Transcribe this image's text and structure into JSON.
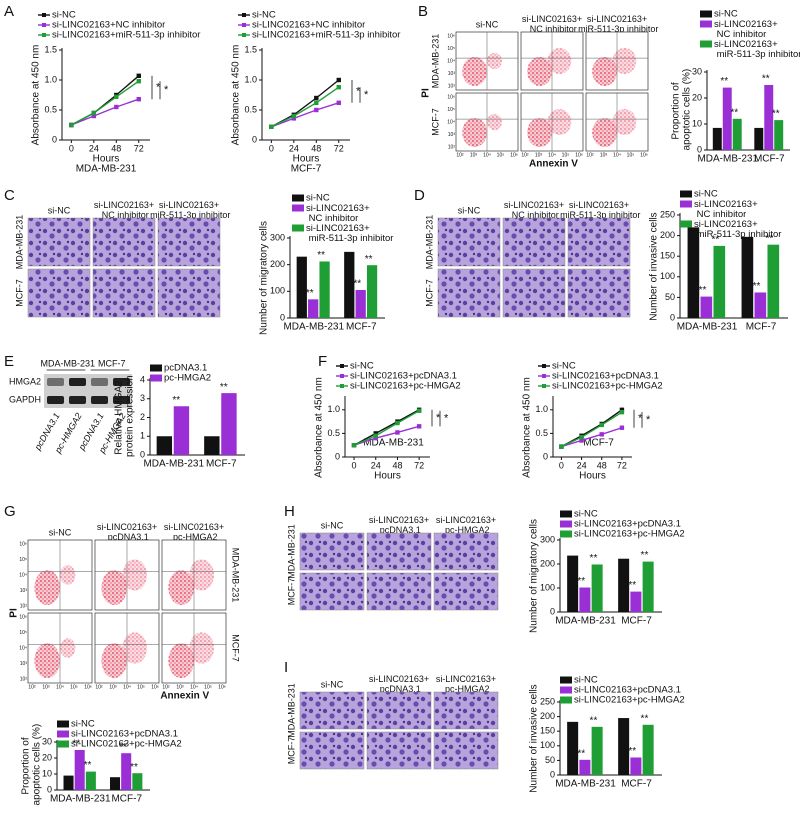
{
  "panel_labels": [
    "A",
    "B",
    "C",
    "D",
    "E",
    "F",
    "G",
    "H",
    "I"
  ],
  "flow_b": {
    "columns": [
      "si-NC",
      "si-LINC02163+ NC inhibitor",
      "si-LINC02163+ miR-511-3p inhibitor"
    ],
    "rows": [
      "MDA-MB-231",
      "MCF-7"
    ],
    "y_label": "PI",
    "x_label": "Annexin V",
    "tick_labels": [
      "10⁶",
      "10⁵",
      "10⁴",
      "10³",
      "10²"
    ]
  },
  "micro_c": {
    "columns": [
      "si-NC",
      "si-LINC02163+ NC inhibitor",
      "si-LINC02163+ miR-511-3p inhibitor"
    ],
    "rows": [
      "MDA-MB-231",
      "MCF-7"
    ]
  },
  "micro_d": {
    "columns": [
      "si-NC",
      "si-LINC02163+ NC inhibitor",
      "si-LINC02163+ miR-511-3p inhibitor"
    ],
    "rows": [
      "MDA-MB-231",
      "MCF-7"
    ]
  },
  "blot_e": {
    "cell_lines": [
      "MDA-MB-231",
      "MCF-7"
    ],
    "proteins": [
      "HMGA2",
      "GAPDH"
    ],
    "lanes": [
      "pcDNA3.1",
      "pc-HMGA2",
      "pcDNA3.1",
      "pc-HMGA2"
    ]
  },
  "flow_g": {
    "columns": [
      "si-NC",
      "si-LINC02163+ pcDNA3.1",
      "si-LINC02163+ pc-HMGA2"
    ],
    "rows": [
      "MDA-MB-231",
      "MCF-7"
    ],
    "y_label": "PI",
    "x_label": "Annexin V",
    "tick_labels": [
      "10⁶",
      "10⁵",
      "10⁴",
      "10³",
      "10²"
    ]
  },
  "micro_h": {
    "columns": [
      "si-NC",
      "si-LINC02163+ pcDNA3.1",
      "si-LINC02163+ pc-HMGA2"
    ],
    "rows": [
      "MDA-MB-231",
      "MCF-7"
    ]
  },
  "micro_i": {
    "columns": [
      "si-NC",
      "si-LINC02163+ pcDNA3.1",
      "si-LINC02163+ pc-HMGA2"
    ],
    "rows": [
      "MDA-MB-231",
      "MCF-7"
    ]
  },
  "chart_data": [
    {
      "type": "line",
      "y_label": "Absorbance at 450 nm",
      "x_label": "Hours",
      "subtitle": "MDA-MB-231",
      "x": [
        0,
        24,
        48,
        72
      ],
      "xlim": [
        -10,
        84
      ],
      "xticks": [
        0,
        24,
        48,
        72
      ],
      "ylim": [
        0,
        1.5
      ],
      "yticks": [
        0,
        0.5,
        {
          "value": 1,
          "label": "1.0"
        },
        1.5
      ],
      "annotations": [
        "*",
        "*"
      ],
      "series": [
        {
          "name": "si-NC",
          "color": "#111111",
          "values": [
            0.25,
            0.45,
            0.75,
            1.07
          ]
        },
        {
          "name": "si-LINC02163+NC inhibitor",
          "color": "#9b2fd6",
          "values": [
            0.25,
            0.4,
            0.55,
            0.68
          ]
        },
        {
          "name": "si-LINC02163+miR-511-3p inhibitor",
          "color": "#1f9e36",
          "values": [
            0.25,
            0.45,
            0.72,
            0.98
          ]
        }
      ]
    },
    {
      "type": "line",
      "y_label": "Absorbance at 450 nm",
      "x_label": "Hours",
      "subtitle": "MCF-7",
      "x": [
        0,
        24,
        48,
        72
      ],
      "xlim": [
        -10,
        84
      ],
      "xticks": [
        0,
        24,
        48,
        72
      ],
      "ylim": [
        0,
        1.5
      ],
      "yticks": [
        0,
        0.5,
        {
          "value": 1,
          "label": "1.0"
        },
        1.5
      ],
      "annotations": [
        "*",
        "*"
      ],
      "series": [
        {
          "name": "si-NC",
          "color": "#111111",
          "values": [
            0.22,
            0.42,
            0.7,
            1.0
          ]
        },
        {
          "name": "si-LINC02163+NC inhibitor",
          "color": "#9b2fd6",
          "values": [
            0.22,
            0.36,
            0.5,
            0.62
          ]
        },
        {
          "name": "si-LINC02163+miR-511-3p inhibitor",
          "color": "#1f9e36",
          "values": [
            0.22,
            0.4,
            0.62,
            0.88
          ]
        }
      ]
    },
    {
      "type": "bar",
      "y_label": "Proportion of apoptotic cells (%)",
      "categories": [
        "MDA-MB-231",
        "MCF-7"
      ],
      "ylim": [
        0,
        30
      ],
      "yticks": [
        0,
        10,
        20,
        30
      ],
      "series": [
        {
          "name": "si-NC",
          "color": "#111111",
          "values": [
            8.5,
            8.5
          ]
        },
        {
          "name": "si-LINC02163+ NC inhibitor",
          "color": "#9b2fd6",
          "values": [
            24,
            25
          ],
          "significance": [
            "**",
            "**"
          ]
        },
        {
          "name": "si-LINC02163+ miR-511-3p inhibitor",
          "color": "#1f9e36",
          "values": [
            12,
            11.5
          ],
          "significance": [
            "**",
            "**"
          ]
        }
      ]
    },
    {
      "type": "bar",
      "y_label": "Number of migratory cells",
      "categories": [
        "MDA-MB-231",
        "MCF-7"
      ],
      "ylim": [
        0,
        300
      ],
      "yticks": [
        0,
        100,
        200,
        300
      ],
      "series": [
        {
          "name": "si-NC",
          "color": "#111111",
          "values": [
            230,
            248
          ]
        },
        {
          "name": "si-LINC02163+ NC inhibitor",
          "color": "#9b2fd6",
          "values": [
            70,
            105
          ],
          "significance": [
            "**",
            "**"
          ]
        },
        {
          "name": "si-LINC02163+ miR-511-3p inhibitor",
          "color": "#1f9e36",
          "values": [
            212,
            198
          ],
          "significance": [
            "**",
            "**"
          ]
        }
      ]
    },
    {
      "type": "bar",
      "y_label": "Number of invasive cells",
      "categories": [
        "MDA-MB-231",
        "MCF-7"
      ],
      "ylim": [
        0,
        250
      ],
      "yticks": [
        0,
        50,
        100,
        150,
        200,
        250
      ],
      "series": [
        {
          "name": "si-NC",
          "color": "#111111",
          "values": [
            220,
            197
          ]
        },
        {
          "name": "si-LINC02163+ NC inhibitor",
          "color": "#9b2fd6",
          "values": [
            52,
            62
          ],
          "significance": [
            "**",
            "**"
          ]
        },
        {
          "name": "si-LINC02163+ miR-511-3p inhibitor",
          "color": "#1f9e36",
          "values": [
            175,
            178
          ],
          "significance": [
            "**",
            "**"
          ]
        }
      ]
    },
    {
      "type": "bar",
      "y_label": "Relative HMGA2 protein expression",
      "categories": [
        "MDA-MB-231",
        "MCF-7"
      ],
      "ylim": [
        0,
        4
      ],
      "yticks": [
        0,
        1,
        2,
        3,
        4
      ],
      "series": [
        {
          "name": "pcDNA3.1",
          "color": "#111111",
          "values": [
            1.0,
            1.0
          ]
        },
        {
          "name": "pc-HMGA2",
          "color": "#9b2fd6",
          "values": [
            2.6,
            3.3
          ],
          "significance": [
            "**",
            "**"
          ]
        }
      ]
    },
    {
      "type": "line",
      "y_label": "Absorbance at 450 nm",
      "x_label": "Hours",
      "subtitle": "MDA-MB-231",
      "x": [
        0,
        24,
        48,
        72
      ],
      "xlim": [
        -10,
        84
      ],
      "xticks": [
        0,
        24,
        48,
        72
      ],
      "ylim": [
        0,
        1.25
      ],
      "yticks": [
        0,
        0.5,
        {
          "value": 1,
          "label": "1.0"
        }
      ],
      "annotations": [
        "*",
        "*"
      ],
      "series": [
        {
          "name": "si-NC",
          "color": "#111111",
          "values": [
            0.25,
            0.5,
            0.75,
            1.0
          ]
        },
        {
          "name": "si-LINC02163+pcDNA3.1",
          "color": "#9b2fd6",
          "values": [
            0.25,
            0.4,
            0.52,
            0.65
          ]
        },
        {
          "name": "si-LINC02163+pc-HMGA2",
          "color": "#1f9e36",
          "values": [
            0.25,
            0.45,
            0.72,
            0.98
          ]
        }
      ]
    },
    {
      "type": "line",
      "y_label": "Absorbance at 450 nm",
      "x_label": "Hours",
      "subtitle": "MCF-7",
      "x": [
        0,
        24,
        48,
        72
      ],
      "xlim": [
        -10,
        84
      ],
      "xticks": [
        0,
        24,
        48,
        72
      ],
      "ylim": [
        0,
        1.25
      ],
      "yticks": [
        0,
        0.5,
        {
          "value": 1,
          "label": "1.0"
        }
      ],
      "annotations": [
        "*",
        "*"
      ],
      "series": [
        {
          "name": "si-NC",
          "color": "#111111",
          "values": [
            0.22,
            0.45,
            0.7,
            1.0
          ]
        },
        {
          "name": "si-LINC02163+pcDNA3.1",
          "color": "#9b2fd6",
          "values": [
            0.22,
            0.35,
            0.48,
            0.62
          ]
        },
        {
          "name": "si-LINC02163+pc-HMGA2",
          "color": "#1f9e36",
          "values": [
            0.22,
            0.42,
            0.68,
            0.95
          ]
        }
      ]
    },
    {
      "type": "bar",
      "y_label": "Proportion of apoptotic cells (%)",
      "categories": [
        "MDA-MB-231",
        "MCF-7"
      ],
      "ylim": [
        0,
        30
      ],
      "yticks": [
        0,
        10,
        20,
        30
      ],
      "series": [
        {
          "name": "si-NC",
          "color": "#111111",
          "values": [
            9,
            8
          ]
        },
        {
          "name": "si-LINC02163+pcDNA3.1",
          "color": "#9b2fd6",
          "values": [
            25,
            23
          ],
          "significance": [
            "**",
            "**"
          ]
        },
        {
          "name": "si-LINC02163+pc-HMGA2",
          "color": "#1f9e36",
          "values": [
            11.5,
            10.5
          ],
          "significance": [
            "**",
            "**"
          ]
        }
      ]
    },
    {
      "type": "bar",
      "y_label": "Number of migratory cells",
      "categories": [
        "MDA-MB-231",
        "MCF-7"
      ],
      "ylim": [
        0,
        300
      ],
      "yticks": [
        0,
        100,
        200,
        300
      ],
      "series": [
        {
          "name": "si-NC",
          "color": "#111111",
          "values": [
            235,
            222
          ]
        },
        {
          "name": "si-LINC02163+pcDNA3.1",
          "color": "#9b2fd6",
          "values": [
            102,
            85
          ],
          "significance": [
            "**",
            "**"
          ]
        },
        {
          "name": "si-LINC02163+pc-HMGA2",
          "color": "#1f9e36",
          "values": [
            198,
            210
          ],
          "significance": [
            "**",
            "**"
          ]
        }
      ]
    },
    {
      "type": "bar",
      "y_label": "Number of invasive cells",
      "categories": [
        "MDA-MB-231",
        "MCF-7"
      ],
      "ylim": [
        0,
        250
      ],
      "yticks": [
        0,
        50,
        100,
        150,
        200,
        250
      ],
      "series": [
        {
          "name": "si-NC",
          "color": "#111111",
          "values": [
            182,
            195
          ]
        },
        {
          "name": "si-LINC02163+pcDNA3.1",
          "color": "#9b2fd6",
          "values": [
            52,
            60
          ],
          "significance": [
            "**",
            "**"
          ]
        },
        {
          "name": "si-LINC02163+pc-HMGA2",
          "color": "#1f9e36",
          "values": [
            165,
            172
          ],
          "significance": [
            "**",
            "**"
          ]
        }
      ]
    }
  ]
}
